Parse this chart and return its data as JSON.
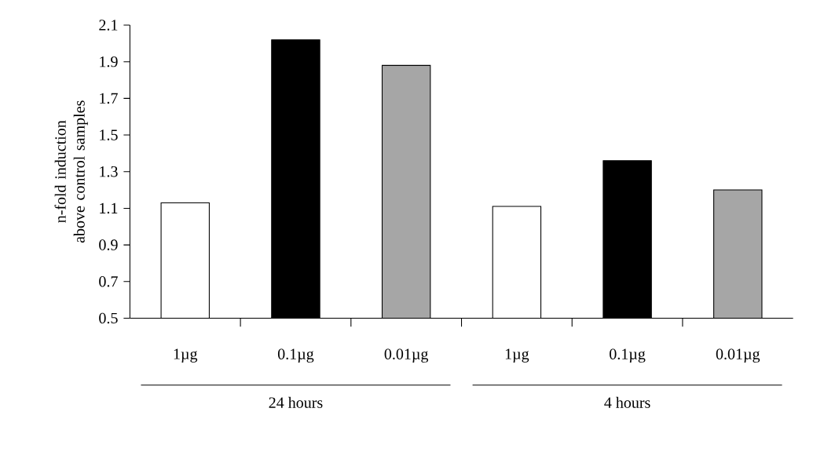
{
  "chart_data": {
    "type": "bar",
    "ylabel": "n-fold induction above control samples",
    "categories": [
      "1µg",
      "0.1µg",
      "0.01µg",
      "1µg",
      "0.1µg",
      "0.01µg"
    ],
    "values": [
      1.13,
      2.02,
      1.88,
      1.11,
      1.36,
      1.2
    ],
    "colors": [
      "#ffffff",
      "#000000",
      "#a6a6a6",
      "#ffffff",
      "#000000",
      "#a6a6a6"
    ],
    "ylim": [
      0.5,
      2.1
    ],
    "yticks": [
      0.5,
      0.7,
      0.9,
      1.1,
      1.3,
      1.5,
      1.7,
      1.9,
      2.1
    ],
    "annotations": [
      "24 hours",
      "4 hours"
    ]
  }
}
